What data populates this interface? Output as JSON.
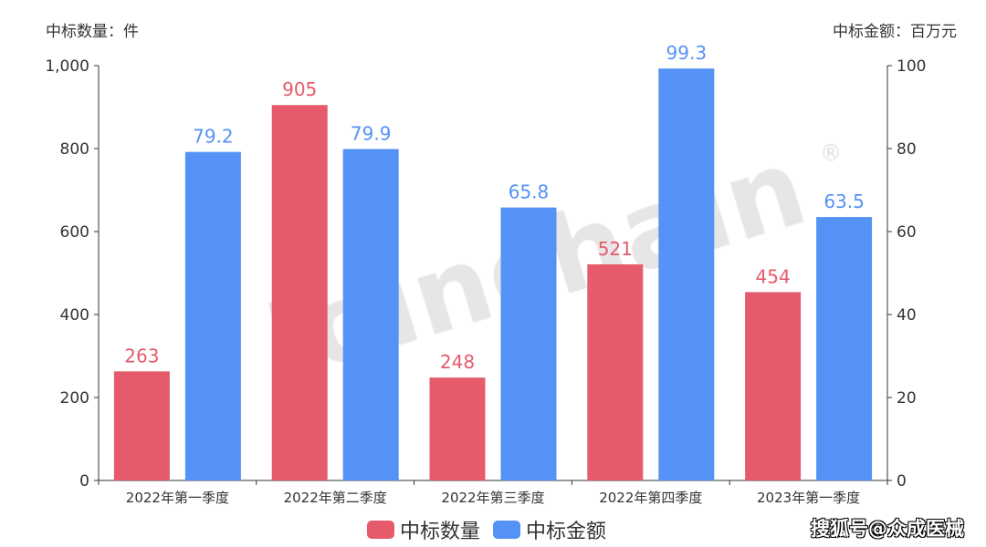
{
  "chart_data": {
    "type": "bar",
    "categories": [
      "2022年第一季度",
      "2022年第二季度",
      "2022年第三季度",
      "2022年第四季度",
      "2023年第一季度"
    ],
    "series": [
      {
        "name": "中标数量",
        "axis": "left",
        "color": "#e55b6b",
        "values": [
          263,
          905,
          248,
          521,
          454
        ],
        "labels": [
          "263",
          "905",
          "248",
          "521",
          "454"
        ]
      },
      {
        "name": "中标金额",
        "axis": "right",
        "color": "#5592f5",
        "values": [
          79.2,
          79.9,
          65.8,
          99.3,
          63.5
        ],
        "labels": [
          "79.2",
          "79.9",
          "65.8",
          "99.3",
          "63.5"
        ]
      }
    ],
    "ylabel_left": "中标数量：件",
    "ylabel_right": "中标金额：百万元",
    "ylim_left": [
      0,
      1000
    ],
    "ylim_right": [
      0,
      100
    ],
    "yticks_left": [
      "0",
      "200",
      "400",
      "600",
      "800",
      "1,000"
    ],
    "yticks_right": [
      "0",
      "20",
      "40",
      "60",
      "80",
      "100"
    ],
    "legend": "bottom",
    "grid": false
  },
  "watermark": "Joinchain®",
  "source": "搜狐号@众成医械"
}
